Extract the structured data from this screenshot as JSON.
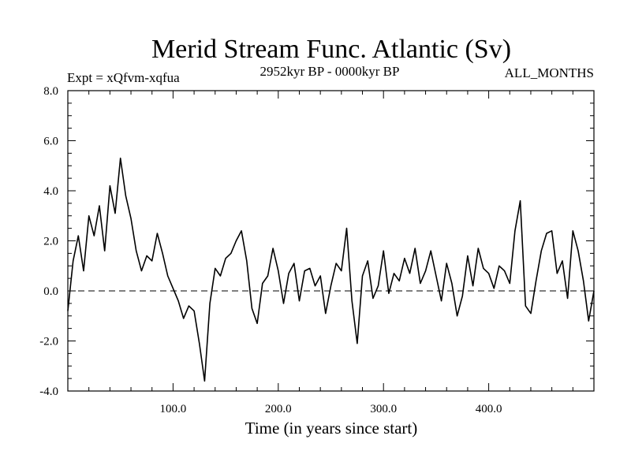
{
  "chart_data": {
    "type": "line",
    "title": "Merid Stream Func. Atlantic (Sv)",
    "subtitle_left": "Expt = xQfvm-xqfua",
    "subtitle_center": "2952kyr BP - 0000kyr BP",
    "subtitle_right": "ALL_MONTHS",
    "xlabel": "Time (in years since start)",
    "ylabel": "",
    "xlim": [
      0,
      500
    ],
    "ylim": [
      -4,
      8
    ],
    "x_ticks": [
      {
        "value": 100,
        "label": "100.0"
      },
      {
        "value": 200,
        "label": "200.0"
      },
      {
        "value": 300,
        "label": "300.0"
      },
      {
        "value": 400,
        "label": "400.0"
      }
    ],
    "y_ticks": [
      {
        "value": 8,
        "label": "8.0"
      },
      {
        "value": 6,
        "label": "6.0"
      },
      {
        "value": 4,
        "label": "4.0"
      },
      {
        "value": 2,
        "label": "2.0"
      },
      {
        "value": 0,
        "label": "0.0"
      },
      {
        "value": -2,
        "label": "-2.0"
      },
      {
        "value": -4,
        "label": "-4.0"
      }
    ],
    "reference_line": {
      "y": 0,
      "style": "dashed"
    },
    "series": [
      {
        "name": "Merid Stream Func. Atlantic",
        "color": "#000000",
        "x": [
          0,
          5,
          10,
          15,
          20,
          25,
          30,
          35,
          40,
          45,
          50,
          55,
          60,
          65,
          70,
          75,
          80,
          85,
          90,
          95,
          100,
          105,
          110,
          115,
          120,
          125,
          130,
          135,
          140,
          145,
          150,
          155,
          160,
          165,
          170,
          175,
          180,
          185,
          190,
          195,
          200,
          205,
          210,
          215,
          220,
          225,
          230,
          235,
          240,
          245,
          250,
          255,
          260,
          265,
          270,
          275,
          280,
          285,
          290,
          295,
          300,
          305,
          310,
          315,
          320,
          325,
          330,
          335,
          340,
          345,
          350,
          355,
          360,
          365,
          370,
          375,
          380,
          385,
          390,
          395,
          400,
          405,
          410,
          415,
          420,
          425,
          430,
          435,
          440,
          445,
          450,
          455,
          460,
          465,
          470,
          475,
          480,
          485,
          490,
          495,
          500
        ],
        "values": [
          -0.8,
          1.2,
          2.2,
          0.8,
          3.0,
          2.2,
          3.4,
          1.6,
          4.2,
          3.1,
          5.3,
          3.8,
          2.9,
          1.6,
          0.8,
          1.4,
          1.2,
          2.3,
          1.5,
          0.6,
          0.1,
          -0.4,
          -1.1,
          -0.6,
          -0.8,
          -2.1,
          -3.6,
          -0.5,
          0.9,
          0.6,
          1.3,
          1.5,
          2.0,
          2.4,
          1.2,
          -0.7,
          -1.3,
          0.3,
          0.6,
          1.7,
          0.8,
          -0.5,
          0.7,
          1.1,
          -0.4,
          0.8,
          0.9,
          0.2,
          0.6,
          -0.9,
          0.2,
          1.1,
          0.8,
          2.5,
          -0.4,
          -2.1,
          0.6,
          1.2,
          -0.3,
          0.2,
          1.6,
          -0.1,
          0.7,
          0.4,
          1.3,
          0.7,
          1.7,
          0.3,
          0.8,
          1.6,
          0.6,
          -0.4,
          1.1,
          0.3,
          -1.0,
          -0.2,
          1.4,
          0.2,
          1.7,
          0.9,
          0.7,
          0.1,
          1.0,
          0.8,
          0.3,
          2.4,
          3.6,
          -0.6,
          -0.9,
          0.4,
          1.6,
          2.3,
          2.4,
          0.7,
          1.2,
          -0.3,
          2.4,
          1.6,
          0.4,
          -1.2,
          0.0
        ]
      }
    ]
  }
}
